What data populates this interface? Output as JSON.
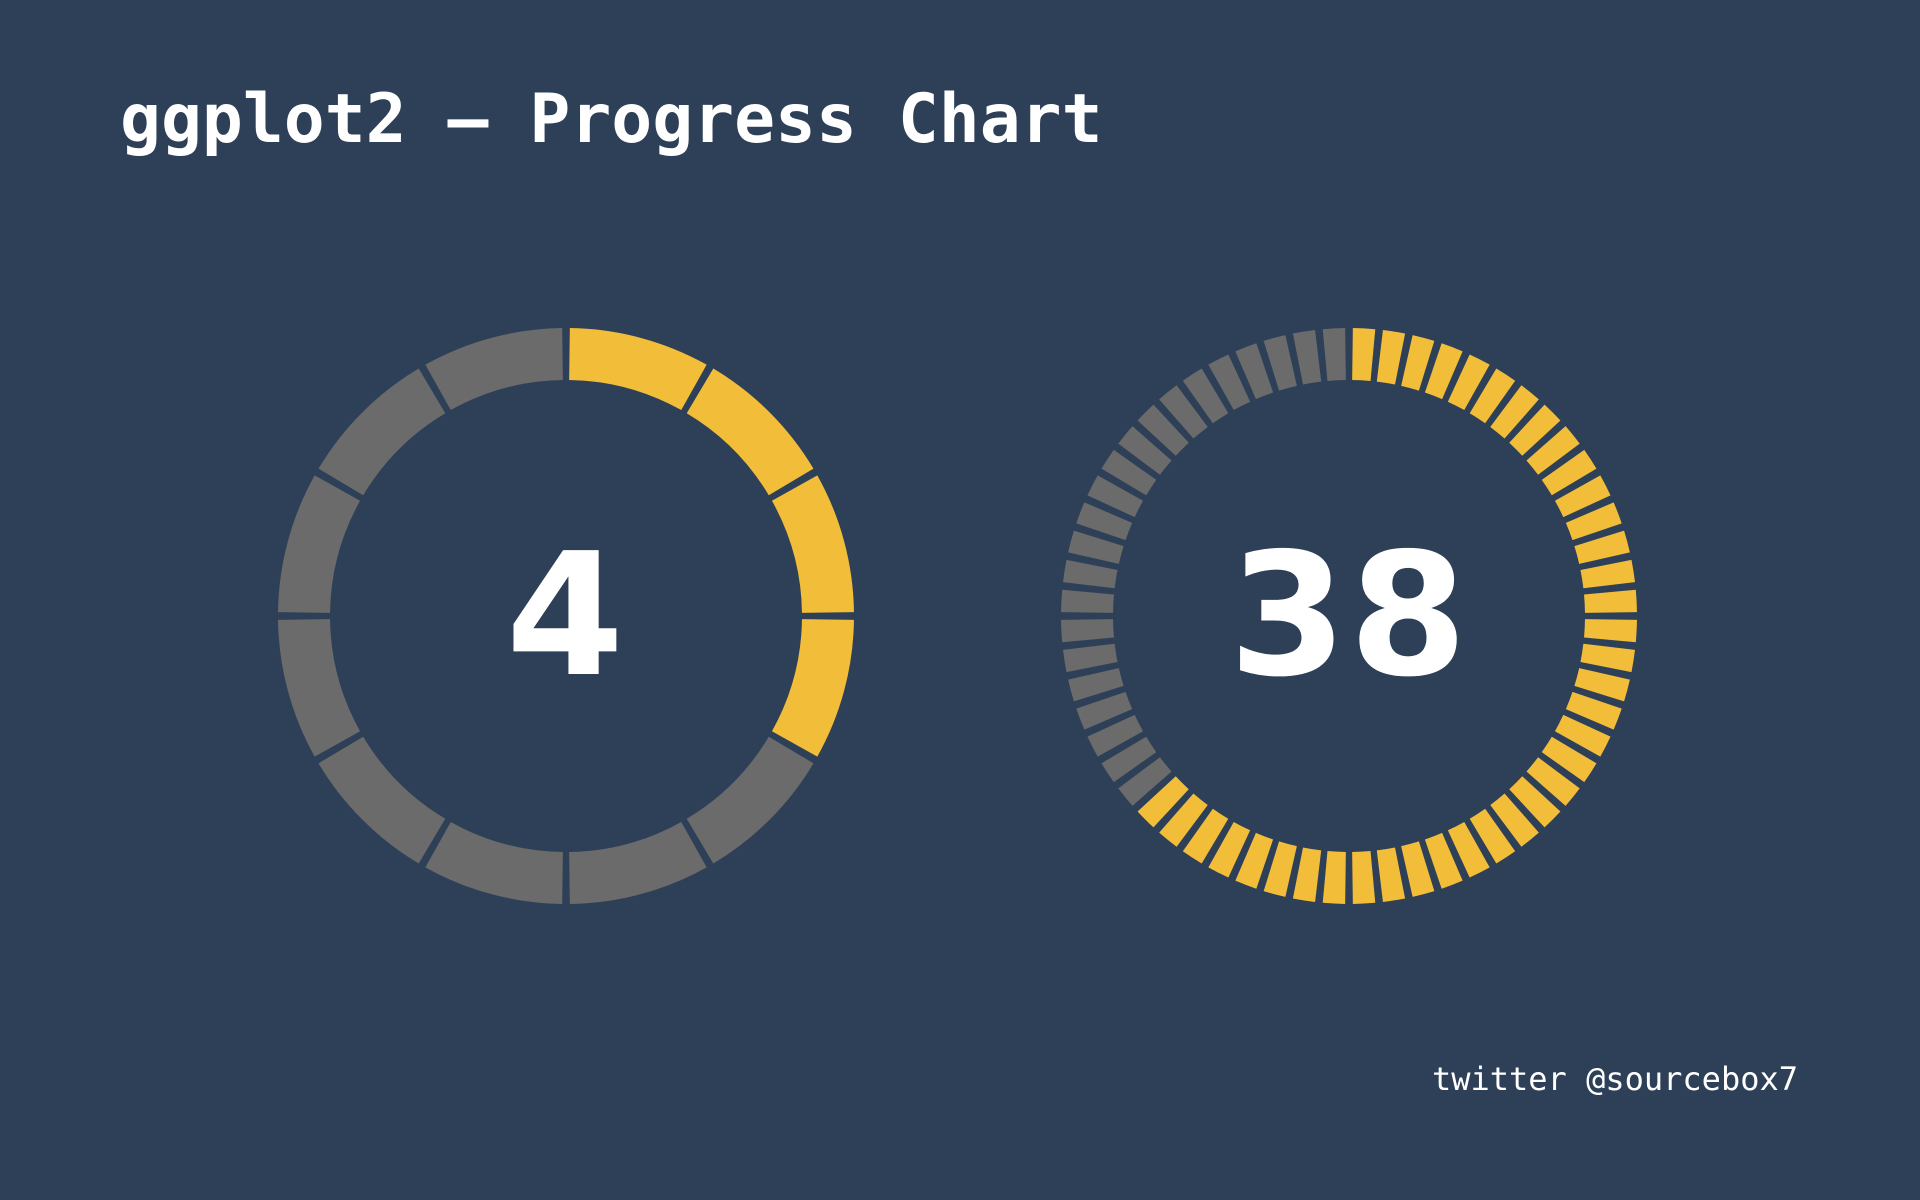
{
  "title": "ggplot2 – Progress Chart",
  "footer": "twitter @sourcebox7",
  "colors": {
    "background": "#2e4058",
    "filled": "#f2bd39",
    "empty": "#6b6b6b",
    "text": "#ffffff"
  },
  "chart_data": [
    {
      "type": "progress-ring",
      "segments": 12,
      "filled": 4,
      "label": "4"
    },
    {
      "type": "progress-ring",
      "segments": 60,
      "filled": 38,
      "label": "38"
    }
  ]
}
